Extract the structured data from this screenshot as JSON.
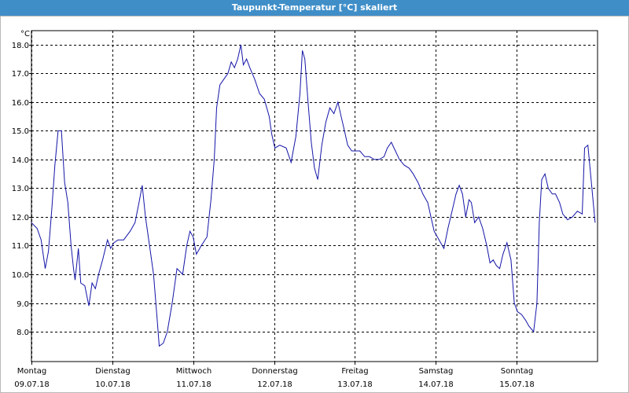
{
  "chart_data": {
    "type": "line",
    "title": "Taupunkt-Temperatur [°C] skaliert",
    "y_label": "°C",
    "xlim": [
      0,
      7
    ],
    "ylim": [
      6.96,
      18.49
    ],
    "grid": true,
    "xticks": [
      {
        "value": 0,
        "label": [
          "Montag",
          "09.07.18"
        ]
      },
      {
        "value": 1,
        "label": [
          "Dienstag",
          "10.07.18"
        ]
      },
      {
        "value": 2,
        "label": [
          "Mittwoch",
          "11.07.18"
        ]
      },
      {
        "value": 3,
        "label": [
          "Donnerstag",
          "12.07.18"
        ]
      },
      {
        "value": 4,
        "label": [
          "Freitag",
          "13.07.18"
        ]
      },
      {
        "value": 5,
        "label": [
          "Samstag",
          "14.07.18"
        ]
      },
      {
        "value": 6,
        "label": [
          "Sonntag",
          "15.07.18"
        ]
      }
    ],
    "yticks": [
      {
        "value": 8,
        "label": "8.0"
      },
      {
        "value": 9,
        "label": "9.0"
      },
      {
        "value": 10,
        "label": "10.0"
      },
      {
        "value": 11,
        "label": "11.0"
      },
      {
        "value": 12,
        "label": "12.0"
      },
      {
        "value": 13,
        "label": "13.0"
      },
      {
        "value": 14,
        "label": "14.0"
      },
      {
        "value": 15,
        "label": "15.0"
      },
      {
        "value": 16,
        "label": "16.0"
      },
      {
        "value": 17,
        "label": "17.0"
      },
      {
        "value": 18,
        "label": "18.0"
      }
    ],
    "x": [
      0,
      0.07,
      0.12,
      0.15,
      0.17,
      0.21,
      0.25,
      0.29,
      0.33,
      0.37,
      0.41,
      0.45,
      0.49,
      0.52,
      0.54,
      0.58,
      0.61,
      0.66,
      0.71,
      0.75,
      0.79,
      0.83,
      0.88,
      0.94,
      0.98,
      1.02,
      1.07,
      1.14,
      1.22,
      1.28,
      1.33,
      1.37,
      1.41,
      1.46,
      1.51,
      1.55,
      1.58,
      1.63,
      1.68,
      1.74,
      1.8,
      1.87,
      1.92,
      1.96,
      2.0,
      2.04,
      2.1,
      2.17,
      2.22,
      2.26,
      2.29,
      2.33,
      2.38,
      2.43,
      2.47,
      2.51,
      2.55,
      2.59,
      2.62,
      2.66,
      2.7,
      2.76,
      2.82,
      2.88,
      2.94,
      2.97,
      3.01,
      3.07,
      3.15,
      3.21,
      3.27,
      3.32,
      3.35,
      3.38,
      3.42,
      3.46,
      3.5,
      3.54,
      3.59,
      3.64,
      3.69,
      3.74,
      3.79,
      3.83,
      3.87,
      3.91,
      3.96,
      4.01,
      4.06,
      4.12,
      4.18,
      4.24,
      4.3,
      4.36,
      4.4,
      4.45,
      4.5,
      4.55,
      4.61,
      4.67,
      4.72,
      4.78,
      4.84,
      4.9,
      4.94,
      4.98,
      5.04,
      5.1,
      5.15,
      5.2,
      5.25,
      5.29,
      5.33,
      5.37,
      5.41,
      5.44,
      5.48,
      5.53,
      5.58,
      5.63,
      5.67,
      5.71,
      5.75,
      5.79,
      5.83,
      5.88,
      5.93,
      5.97,
      6.01,
      6.06,
      6.11,
      6.15,
      6.21,
      6.25,
      6.28,
      6.31,
      6.35,
      6.39,
      6.44,
      6.48,
      6.53,
      6.57,
      6.63,
      6.69,
      6.75,
      6.81,
      6.84,
      6.88,
      6.92,
      6.97
    ],
    "series": [
      {
        "color": "#1414a8",
        "values": [
          11.8,
          11.6,
          11.2,
          10.6,
          10.2,
          10.8,
          12.2,
          13.8,
          15.0,
          15.0,
          13.2,
          12.5,
          11.0,
          10.2,
          9.8,
          10.9,
          9.7,
          9.6,
          8.9,
          9.7,
          9.5,
          10.0,
          10.5,
          11.2,
          10.9,
          11.1,
          11.2,
          11.2,
          11.5,
          11.8,
          12.5,
          13.1,
          12.0,
          11.0,
          10.0,
          8.6,
          7.5,
          7.6,
          8.0,
          9.0,
          10.2,
          10.0,
          11.0,
          11.5,
          11.3,
          10.7,
          11.0,
          11.3,
          12.6,
          14.0,
          15.8,
          16.6,
          16.8,
          17.0,
          17.4,
          17.2,
          17.5,
          18.0,
          17.3,
          17.5,
          17.2,
          16.8,
          16.3,
          16.1,
          15.5,
          14.9,
          14.4,
          14.5,
          14.4,
          13.9,
          14.8,
          16.3,
          17.8,
          17.5,
          16.0,
          14.6,
          13.7,
          13.3,
          14.5,
          15.3,
          15.8,
          15.6,
          16.0,
          15.5,
          15.0,
          14.5,
          14.3,
          14.3,
          14.3,
          14.1,
          14.1,
          14.0,
          14.0,
          14.1,
          14.4,
          14.6,
          14.3,
          14.0,
          13.8,
          13.7,
          13.5,
          13.2,
          12.8,
          12.5,
          12.0,
          11.5,
          11.2,
          10.9,
          11.6,
          12.2,
          12.8,
          13.1,
          12.8,
          12.0,
          12.6,
          12.5,
          11.8,
          12.0,
          11.6,
          11.0,
          10.4,
          10.5,
          10.3,
          10.2,
          10.7,
          11.1,
          10.5,
          9.0,
          8.7,
          8.6,
          8.4,
          8.2,
          8.0,
          9.0,
          11.8,
          13.3,
          13.5,
          13.0,
          12.8,
          12.8,
          12.5,
          12.1,
          11.9,
          12.0,
          12.2,
          12.1,
          14.4,
          14.5,
          13.3,
          11.8
        ]
      }
    ]
  }
}
